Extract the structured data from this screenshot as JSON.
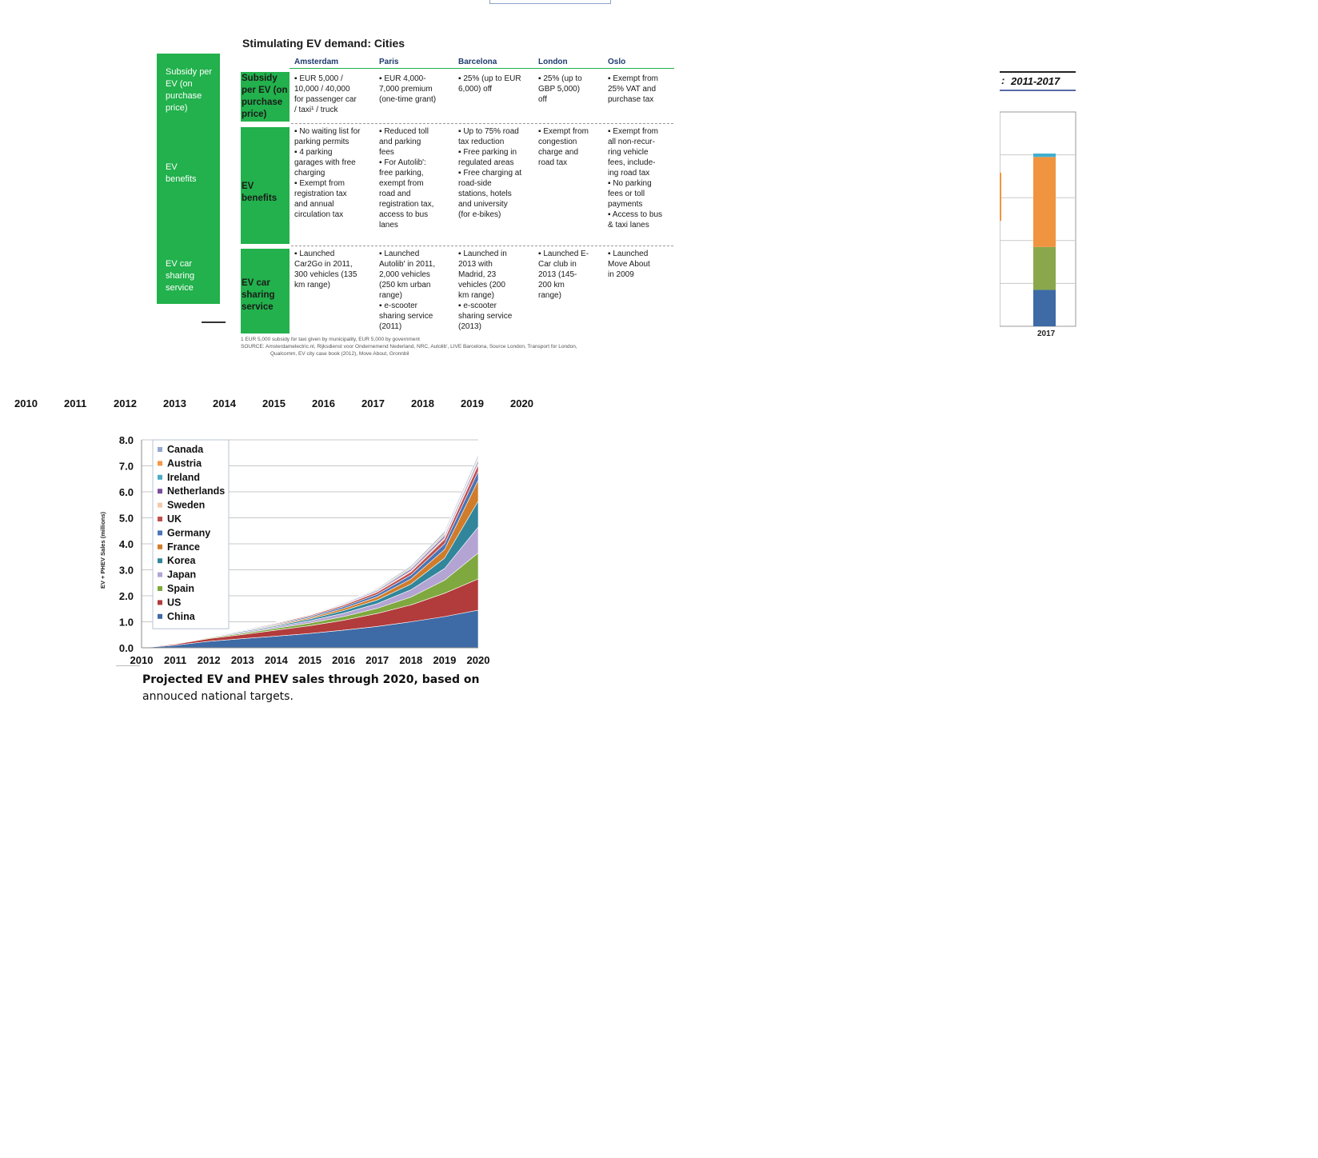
{
  "table": {
    "title": "Stimulating EV demand: Cities",
    "side_labels": [
      "Subsidy per EV (on purchase price)",
      "EV benefits",
      "EV car sharing service"
    ],
    "row_headers": [
      "Subsidy per EV (on purchase price)",
      "EV benefits",
      "EV car sharing service"
    ],
    "columns": [
      "Amsterdam",
      "Paris",
      "Barcelona",
      "London",
      "Oslo"
    ],
    "rows": [
      [
        "▪ EUR 5,000 /\n10,000 / 40,000\nfor passenger car\n/ taxi¹ / truck",
        "▪ EUR 4,000-\n7,000 premium\n(one-time grant)",
        "▪ 25% (up to EUR\n6,000) off",
        "▪ 25% (up to\nGBP 5,000)\noff",
        "▪ Exempt from\n25% VAT and\npurchase tax"
      ],
      [
        "▪ No waiting list for\nparking permits\n▪ 4 parking\ngarages with free\ncharging\n▪ Exempt from\nregistration tax\nand annual\ncirculation tax",
        "▪ Reduced toll\nand parking\nfees\n▪ For Autolib':\nfree parking,\nexempt from\nroad and\nregistration tax,\naccess to bus\nlanes",
        "▪ Up to 75% road\ntax reduction\n▪ Free parking in\nregulated areas\n▪ Free charging at\nroad-side\nstations, hotels\nand university\n(for e-bikes)",
        "▪ Exempt from\ncongestion\ncharge and\nroad tax",
        "▪ Exempt from\nall non-recur-\nring vehicle\nfees, include-\ning road tax\n▪ No parking\nfees or toll\npayments\n▪ Access to bus\n& taxi lanes"
      ],
      [
        "▪ Launched\nCar2Go in 2011,\n300 vehicles (135\nkm range)",
        "▪ Launched\nAutolib' in 2011,\n2,000 vehicles\n(250 km urban\nrange)\n▪ e-scooter\nsharing service\n(2011)",
        "▪ Launched in\n2013 with\nMadrid, 23\nvehicles (200\nkm range)\n▪ e-scooter\nsharing service\n(2013)",
        "▪ Launched E-\nCar club in\n2013 (145-\n200 km\nrange)",
        "▪ Launched\nMove About\nin 2009"
      ]
    ],
    "footnote": "1 EUR 5,000 subsidy for taxi given by municipality, EUR 5,000 by government",
    "source": "SOURCE: Amsterdamelectric.nl, Rijksdienst voor Ondernemend Nederland, NRC, Autolib', LIVE Barcelona, Source London, Transport for London,",
    "source2": "Qualcomm, EV city case book (2012), Move About, Gronnbil"
  },
  "fragment": {
    "title": "2011-2017",
    "colon": ":",
    "x_label": "2017"
  },
  "year_row": [
    "2010",
    "2011",
    "2012",
    "2013",
    "2014",
    "2015",
    "2016",
    "2017",
    "2018",
    "2019",
    "2020"
  ],
  "caption": {
    "line1": "Projected EV and PHEV sales through 2020, based on",
    "line2": "annouced national targets."
  },
  "chart_data": [
    {
      "type": "area",
      "stacked": true,
      "title": "",
      "xlabel": "",
      "ylabel": "EV + PHEV Sales (millions)",
      "ylim": [
        0,
        8
      ],
      "yticks": [
        "0.0",
        "1.0",
        "2.0",
        "3.0",
        "4.0",
        "5.0",
        "6.0",
        "7.0",
        "8.0"
      ],
      "x": [
        "2010",
        "2011",
        "2012",
        "2013",
        "2014",
        "2015",
        "2016",
        "2017",
        "2018",
        "2019",
        "2020"
      ],
      "grid": true,
      "legend_position": "top-left",
      "series": [
        {
          "name": "China",
          "color": "#3e6aa6",
          "values": [
            0.0,
            0.1,
            0.25,
            0.35,
            0.45,
            0.55,
            0.68,
            0.82,
            1.0,
            1.2,
            1.45
          ]
        },
        {
          "name": "US",
          "color": "#b23b3b",
          "values": [
            0.0,
            0.04,
            0.1,
            0.16,
            0.23,
            0.3,
            0.38,
            0.5,
            0.65,
            0.9,
            1.2
          ]
        },
        {
          "name": "Spain",
          "color": "#7fa83f",
          "values": [
            0.0,
            0.01,
            0.03,
            0.05,
            0.07,
            0.1,
            0.14,
            0.2,
            0.3,
            0.5,
            1.0
          ]
        },
        {
          "name": "Japan",
          "color": "#b4a4d4",
          "values": [
            0.0,
            0.01,
            0.02,
            0.04,
            0.06,
            0.09,
            0.13,
            0.18,
            0.28,
            0.45,
            1.0
          ]
        },
        {
          "name": "Korea",
          "color": "#31869b",
          "values": [
            0.0,
            0.0,
            0.01,
            0.03,
            0.04,
            0.07,
            0.1,
            0.14,
            0.22,
            0.4,
            1.0
          ]
        },
        {
          "name": "France",
          "color": "#d07c2b",
          "values": [
            0.0,
            0.0,
            0.01,
            0.02,
            0.03,
            0.05,
            0.08,
            0.12,
            0.2,
            0.33,
            0.8
          ]
        },
        {
          "name": "Germany",
          "color": "#4a74b6",
          "values": [
            0.0,
            0.0,
            0.01,
            0.02,
            0.03,
            0.05,
            0.07,
            0.1,
            0.15,
            0.22,
            0.35
          ]
        },
        {
          "name": "UK",
          "color": "#c0504d",
          "values": [
            0.0,
            0.0,
            0.01,
            0.02,
            0.03,
            0.04,
            0.06,
            0.08,
            0.12,
            0.18,
            0.25
          ]
        },
        {
          "name": "Sweden",
          "color": "#f3c8ad",
          "values": [
            0.0,
            0.0,
            0.0,
            0.01,
            0.01,
            0.02,
            0.02,
            0.03,
            0.04,
            0.05,
            0.06
          ]
        },
        {
          "name": "Netherlands",
          "color": "#7b4c9c",
          "values": [
            0.0,
            0.0,
            0.0,
            0.01,
            0.01,
            0.02,
            0.03,
            0.04,
            0.06,
            0.08,
            0.1
          ]
        },
        {
          "name": "Ireland",
          "color": "#4bacc6",
          "values": [
            0.0,
            0.0,
            0.0,
            0.0,
            0.01,
            0.01,
            0.02,
            0.03,
            0.04,
            0.05,
            0.06
          ]
        },
        {
          "name": "Austria",
          "color": "#f79646",
          "values": [
            0.0,
            0.0,
            0.0,
            0.0,
            0.01,
            0.01,
            0.02,
            0.03,
            0.04,
            0.05,
            0.06
          ]
        },
        {
          "name": "Canada",
          "color": "#93a9cf",
          "values": [
            0.0,
            0.0,
            0.0,
            0.0,
            0.01,
            0.01,
            0.02,
            0.03,
            0.05,
            0.07,
            0.09
          ]
        }
      ]
    },
    {
      "type": "bar",
      "stacked": true,
      "title": "2011-2017",
      "categories": [
        "2017"
      ],
      "series": [
        {
          "color": "#3e6aa6",
          "values": [
            0.85
          ]
        },
        {
          "color": "#8aa84b",
          "values": [
            1.0
          ]
        },
        {
          "color": "#f0943f",
          "values": [
            2.1
          ]
        },
        {
          "color": "#3fb0d0",
          "values": [
            0.08
          ]
        }
      ],
      "ylim": [
        0,
        5
      ],
      "grid": true
    }
  ]
}
